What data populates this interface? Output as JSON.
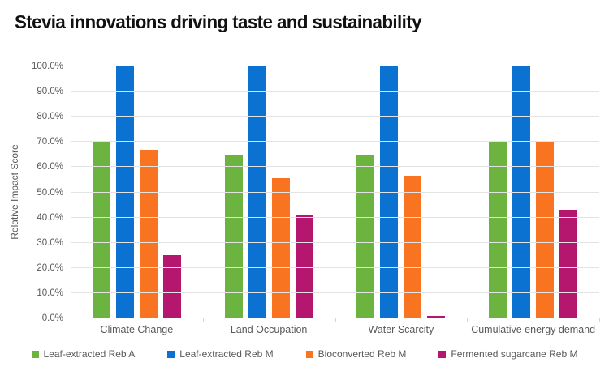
{
  "title": "Stevia innovations driving taste and sustainability",
  "colors": {
    "series_green": "#6CB33F",
    "series_blue": "#0C72D2",
    "series_orange": "#F97420",
    "series_magenta": "#B5176F",
    "gridline": "#e3e3e3",
    "axis_line": "#d6d6d6",
    "axis_text": "#595959",
    "title_text": "#111111",
    "background": "#ffffff"
  },
  "chart_data": {
    "type": "bar",
    "title": "Stevia innovations driving taste and sustainability",
    "xlabel": "",
    "ylabel": "Relative Impact Score",
    "categories": [
      "Climate Change",
      "Land Occupation",
      "Water Scarcity",
      "Cumulative energy demand"
    ],
    "series": [
      {
        "name": "Leaf-extracted Reb A",
        "color": "#6CB33F",
        "values": [
          70,
          65,
          65,
          70
        ]
      },
      {
        "name": "Leaf-extracted Reb M",
        "color": "#0C72D2",
        "values": [
          100,
          100,
          100,
          100
        ]
      },
      {
        "name": "Bioconverted Reb M",
        "color": "#F97420",
        "values": [
          67,
          55.5,
          56.5,
          70
        ]
      },
      {
        "name": "Fermented sugarcane Reb M",
        "color": "#B5176F",
        "values": [
          25,
          41,
          1,
          43
        ]
      }
    ],
    "ylim": [
      0,
      100
    ],
    "ytick_step": 10,
    "yticks": [
      "0.0%",
      "10.0%",
      "20.0%",
      "30.0%",
      "40.0%",
      "50.0%",
      "60.0%",
      "70.0%",
      "80.0%",
      "90.0%",
      "100.0%"
    ],
    "grid": true,
    "legend_position": "bottom"
  }
}
